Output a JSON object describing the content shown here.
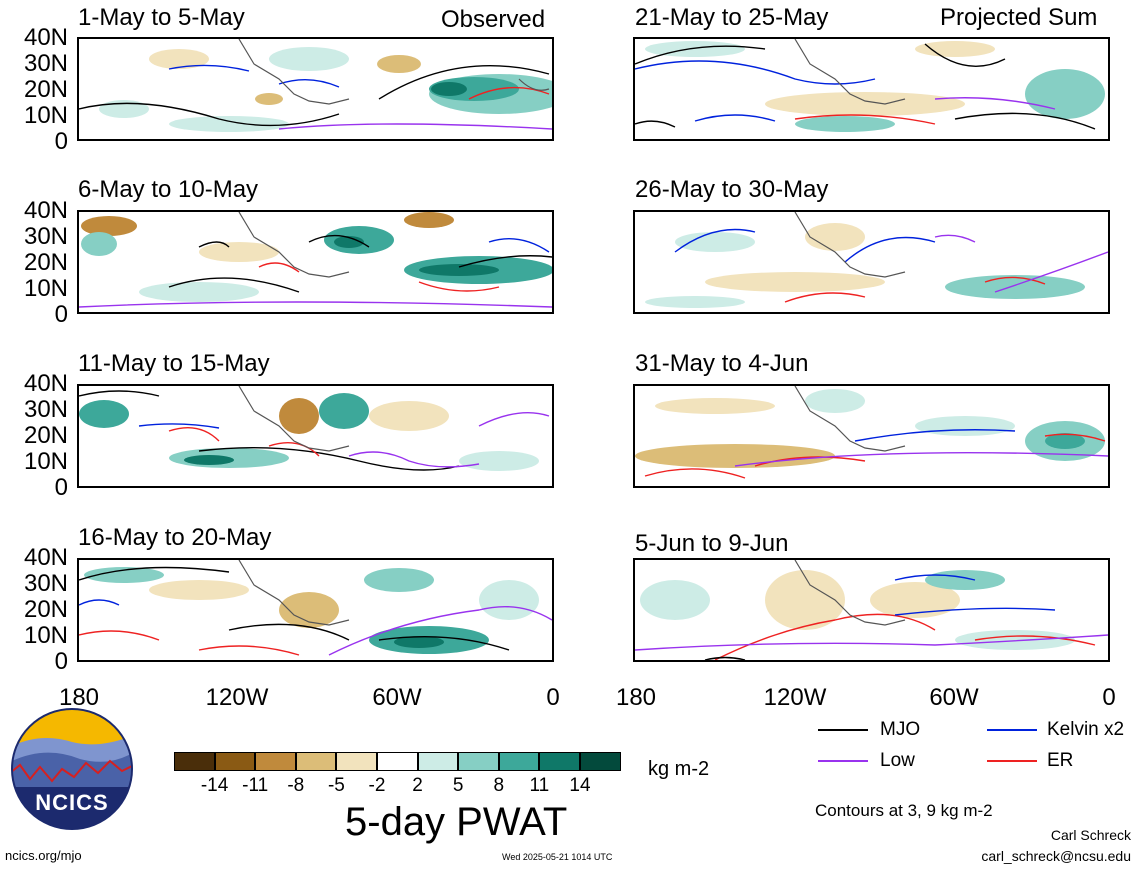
{
  "panels": [
    {
      "title": "1-May to 5-May",
      "label": "Observed"
    },
    {
      "title": "6-May to 10-May"
    },
    {
      "title": "11-May to 15-May"
    },
    {
      "title": "16-May to 20-May"
    },
    {
      "title": "21-May to 25-May",
      "label": "Projected Sum"
    },
    {
      "title": "26-May to 30-May"
    },
    {
      "title": "31-May to 4-Jun"
    },
    {
      "title": "5-Jun to 9-Jun"
    }
  ],
  "y_ticks": [
    "40N",
    "30N",
    "20N",
    "10N",
    "0"
  ],
  "x_ticks": [
    "180",
    "120W",
    "60W",
    "0"
  ],
  "colorbar": {
    "colors": [
      "#4a2e0a",
      "#8a5a14",
      "#c08a3c",
      "#dcbd78",
      "#f2e3bd",
      "#ffffff",
      "#cdece6",
      "#86cfc4",
      "#3da89a",
      "#0f7868",
      "#034a3c"
    ],
    "labels": [
      "-14",
      "-11",
      "-8",
      "-5",
      "-2",
      "2",
      "5",
      "8",
      "11",
      "14"
    ],
    "units": "kg m-2",
    "title": "5-day PWAT"
  },
  "legend": [
    {
      "name": "MJO",
      "color": "#000000"
    },
    {
      "name": "Kelvin x2",
      "color": "#0022dd"
    },
    {
      "name": "Low",
      "color": "#9933ee"
    },
    {
      "name": "ER",
      "color": "#ee2222"
    }
  ],
  "contours_note": "Contours at 3, 9 kg m-2",
  "logo": {
    "text": "NCICS"
  },
  "footer": {
    "url": "ncics.org/mjo",
    "timestamp": "Wed 2025-05-21 1014 UTC",
    "author": "Carl Schreck",
    "email": "carl_schreck@ncsu.edu"
  }
}
